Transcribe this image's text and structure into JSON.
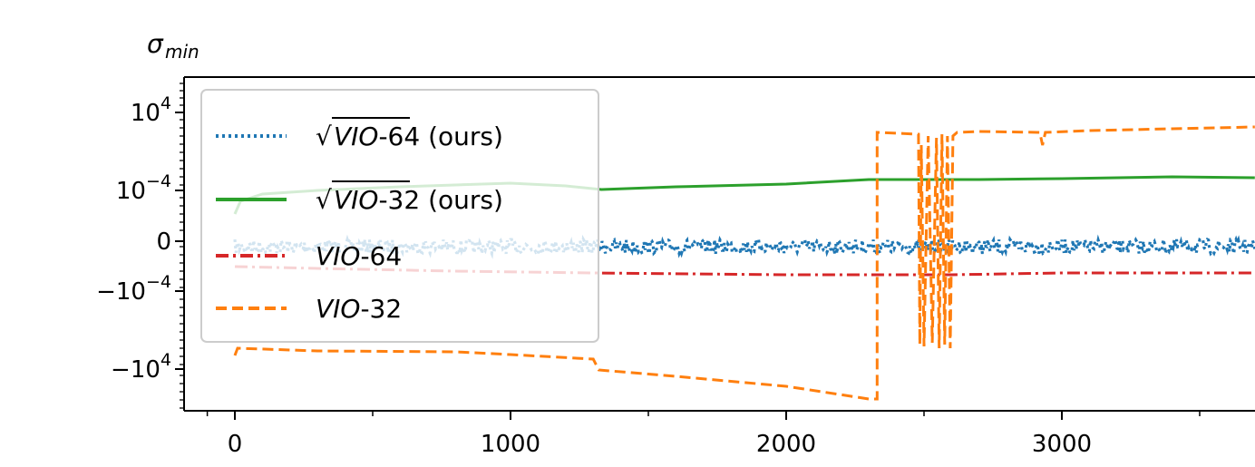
{
  "chart_data": {
    "type": "line",
    "title": "",
    "ylabel_sym": "σ",
    "ylabel_sub": "min",
    "xlabel": "",
    "y_scale": "symlog",
    "xlim": [
      -190,
      3700
    ],
    "ylim_display": [
      "below -10^4",
      "above 10^4"
    ],
    "x_ticks": [
      {
        "value": 0,
        "label": "0"
      },
      {
        "value": 1000,
        "label": "1000"
      },
      {
        "value": 2000,
        "label": "2000"
      },
      {
        "value": 3000,
        "label": "3000"
      }
    ],
    "y_ticks": [
      {
        "base": "10",
        "exp": "4",
        "neg": false,
        "key": "p4"
      },
      {
        "base": "10",
        "exp": "−4",
        "neg": false,
        "key": "p-4"
      },
      {
        "base": "0",
        "exp": "",
        "neg": false,
        "key": "zero"
      },
      {
        "base": "10",
        "exp": "−4",
        "neg": true,
        "key": "n-4"
      },
      {
        "base": "10",
        "exp": "4",
        "neg": true,
        "key": "n4"
      }
    ],
    "legend_position": "upper-left",
    "series": [
      {
        "key": "sqrt64",
        "sqrt": true,
        "name": "VIO",
        "suffix": "-64 (ours)",
        "color": "#1f77b4",
        "style": "dotted",
        "points": [
          [
            0,
            "-0.1e-5"
          ],
          [
            3700,
            "0"
          ]
        ]
      },
      {
        "key": "sqrt32",
        "sqrt": true,
        "name": "VIO",
        "suffix": "-32 (ours)",
        "color": "#2ca02c",
        "style": "solid",
        "points": [
          [
            0,
            "-1.0"
          ],
          [
            20,
            "-0.75"
          ],
          [
            100,
            "-0.45"
          ],
          [
            300,
            "-0.35"
          ],
          [
            600,
            "-0.25"
          ],
          [
            1000,
            "-0.2"
          ],
          [
            1200,
            "-0.25"
          ],
          [
            1330,
            "-0.5"
          ],
          [
            1600,
            "-0.45"
          ],
          [
            2000,
            "-0.35"
          ],
          [
            2300,
            "-0.2"
          ],
          [
            2700,
            "0.1"
          ],
          [
            3000,
            "0.2"
          ],
          [
            3400,
            "0.3"
          ],
          [
            3700,
            "0.25"
          ]
        ]
      },
      {
        "key": "vio64",
        "sqrt": false,
        "name": "VIO",
        "suffix": "-64",
        "color": "#d62728",
        "style": "dashdot",
        "points": [
          [
            0,
            "-0.35"
          ],
          [
            500,
            "-0.45"
          ],
          [
            1000,
            "-0.5"
          ],
          [
            1500,
            "-0.5"
          ],
          [
            2000,
            "-0.55"
          ],
          [
            2500,
            "-0.55"
          ],
          [
            3000,
            "-0.5"
          ],
          [
            3700,
            "-0.5"
          ]
        ]
      },
      {
        "key": "vio32",
        "sqrt": false,
        "name": "VIO",
        "suffix": "-32",
        "color": "#ff7f0e",
        "style": "dashed",
        "points": [
          [
            0,
            "-3.2"
          ],
          [
            10,
            "-3.05"
          ],
          [
            300,
            "-3.1"
          ],
          [
            800,
            "-3.15"
          ],
          [
            1000,
            "-3.2"
          ],
          [
            1300,
            "-3.4"
          ],
          [
            1330,
            "-3.6"
          ],
          [
            1600,
            "-3.8"
          ],
          [
            2000,
            "-4.1"
          ],
          [
            2300,
            "-4.3"
          ],
          [
            2330,
            "-4.3"
          ]
        ]
      }
    ]
  }
}
